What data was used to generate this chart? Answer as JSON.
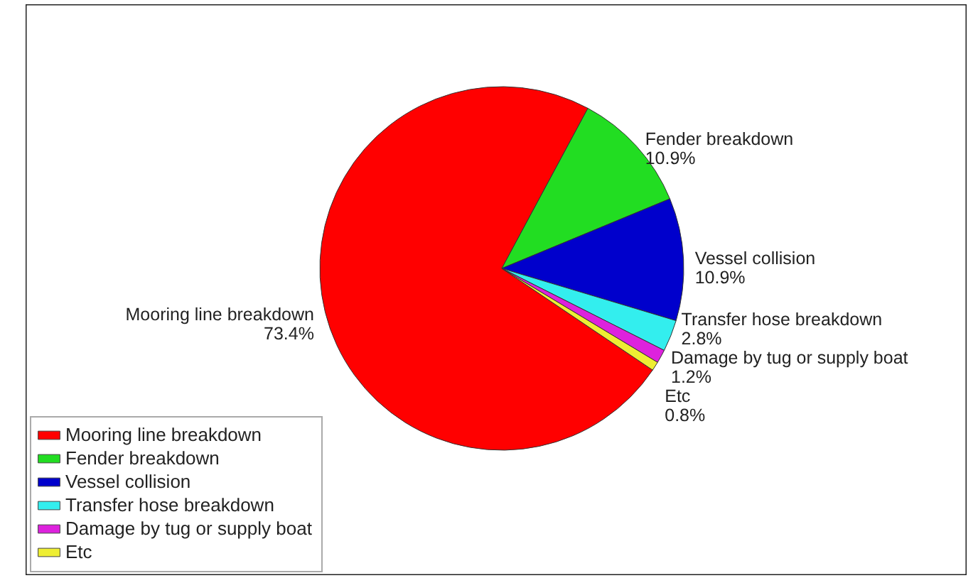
{
  "chart_data": {
    "type": "pie",
    "categories": [
      "Mooring line breakdown",
      "Fender breakdown",
      "Vessel collision",
      "Transfer hose breakdown",
      "Damage by tug or supply boat",
      "Etc"
    ],
    "values": [
      73.4,
      10.9,
      10.9,
      2.8,
      1.2,
      0.8
    ],
    "colors": [
      "#ff0000",
      "#22dd22",
      "#0000cc",
      "#33eeee",
      "#dd22dd",
      "#eeee33"
    ],
    "value_labels": [
      "73.4%",
      "10.9%",
      "10.9%",
      "2.8%",
      "1.2%",
      "0.8%"
    ],
    "legend": "bottom left"
  }
}
